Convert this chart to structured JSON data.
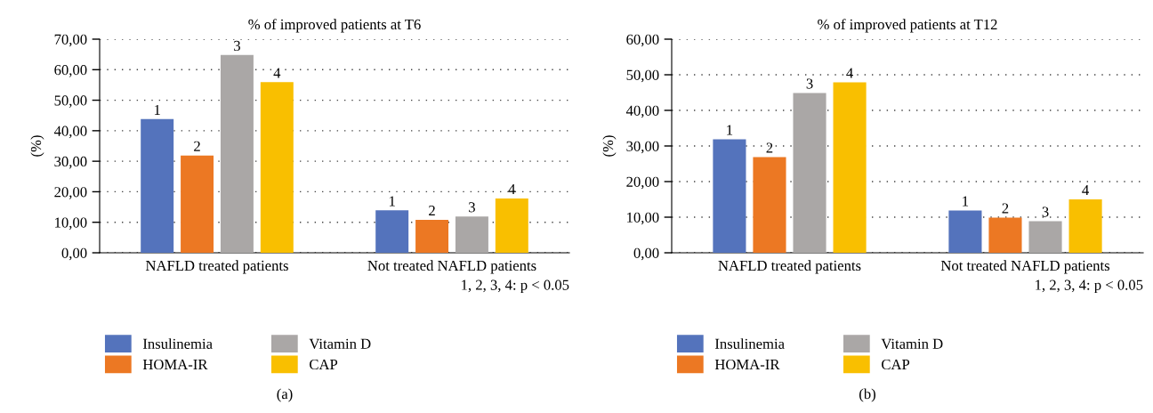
{
  "chart_data": [
    {
      "type": "bar",
      "title": "% of improved patients at T6",
      "ylabel": "(%)",
      "categories": [
        "NAFLD treated patients",
        "Not treated NAFLD patients"
      ],
      "series": [
        {
          "name": "Insulinemia",
          "color": "#5473bc",
          "values": [
            43.8,
            13.9
          ]
        },
        {
          "name": "HOMA-IR",
          "color": "#ec7823",
          "values": [
            31.9,
            10.8
          ]
        },
        {
          "name": "Vitamin D",
          "color": "#aaa7a6",
          "values": [
            64.8,
            11.9
          ]
        },
        {
          "name": "CAP",
          "color": "#f9bf00",
          "values": [
            55.9,
            17.8
          ]
        }
      ],
      "ylim": [
        0,
        70
      ],
      "yticks": [
        {
          "value": 0,
          "label": "0,00"
        },
        {
          "value": 10,
          "label": "10,00"
        },
        {
          "value": 20,
          "label": "20,00"
        },
        {
          "value": 30,
          "label": "30,00"
        },
        {
          "value": 40,
          "label": "40,00"
        },
        {
          "value": 50,
          "label": "50,00"
        },
        {
          "value": 60,
          "label": "60,00"
        },
        {
          "value": 70,
          "label": "70,00"
        }
      ],
      "grid": "y",
      "legend": "bottom",
      "annotations": [
        "1, 2, 3, 4: p < 0.05",
        "(a)",
        "1",
        "2",
        "3",
        "4",
        "1",
        "2",
        "3",
        "4"
      ]
    },
    {
      "type": "bar",
      "title": "% of improved patients at T12",
      "ylabel": "(%)",
      "categories": [
        "NAFLD treated patients",
        "Not treated NAFLD patients"
      ],
      "series": [
        {
          "name": "Insulinemia",
          "color": "#5473bc",
          "values": [
            31.9,
            11.9
          ]
        },
        {
          "name": "HOMA-IR",
          "color": "#ec7823",
          "values": [
            26.9,
            9.9
          ]
        },
        {
          "name": "Vitamin D",
          "color": "#aaa7a6",
          "values": [
            44.9,
            8.9
          ]
        },
        {
          "name": "CAP",
          "color": "#f9bf00",
          "values": [
            47.9,
            15
          ]
        }
      ],
      "ylim": [
        0,
        60
      ],
      "yticks": [
        {
          "value": 0,
          "label": "0,00"
        },
        {
          "value": 10,
          "label": "10,00"
        },
        {
          "value": 20,
          "label": "20,00"
        },
        {
          "value": 30,
          "label": "30,00"
        },
        {
          "value": 40,
          "label": "40,00"
        },
        {
          "value": 50,
          "label": "50,00"
        },
        {
          "value": 60,
          "label": "60,00"
        }
      ],
      "grid": "y",
      "legend": "bottom",
      "annotations": [
        "1, 2, 3, 4: p < 0.05",
        "(b)",
        "1",
        "2",
        "3",
        "4",
        "1",
        "2",
        "3",
        "4"
      ]
    }
  ]
}
